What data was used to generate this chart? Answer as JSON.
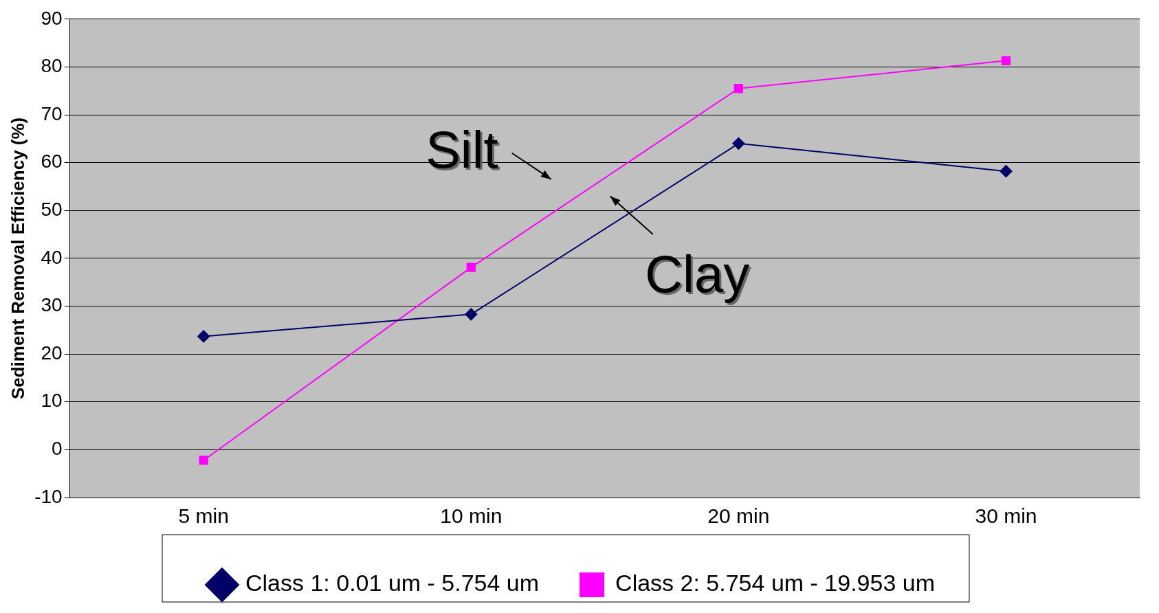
{
  "chart_data": {
    "type": "line",
    "ylabel": "Sediment Removal Efficiency (%)",
    "categories": [
      "5 min",
      "10 min",
      "20 min",
      "30 min"
    ],
    "series": [
      {
        "name": "Class 1: 0.01 um - 5.754 um",
        "color": "#000066",
        "values": [
          23.7,
          28.3,
          64,
          58.2
        ],
        "marker": "diamond"
      },
      {
        "name": "Class 2: 5.754 um - 19.953 um",
        "color": "#ff00ff",
        "values": [
          -2.2,
          38.1,
          75.5,
          81.3
        ],
        "marker": "square"
      }
    ],
    "ylim": [
      -10,
      90
    ],
    "yticks": [
      -10,
      0,
      10,
      20,
      30,
      40,
      50,
      60,
      70,
      80,
      90
    ],
    "grid": "y",
    "legend": "bottom",
    "annotations": [
      "Silt",
      "Clay"
    ]
  }
}
